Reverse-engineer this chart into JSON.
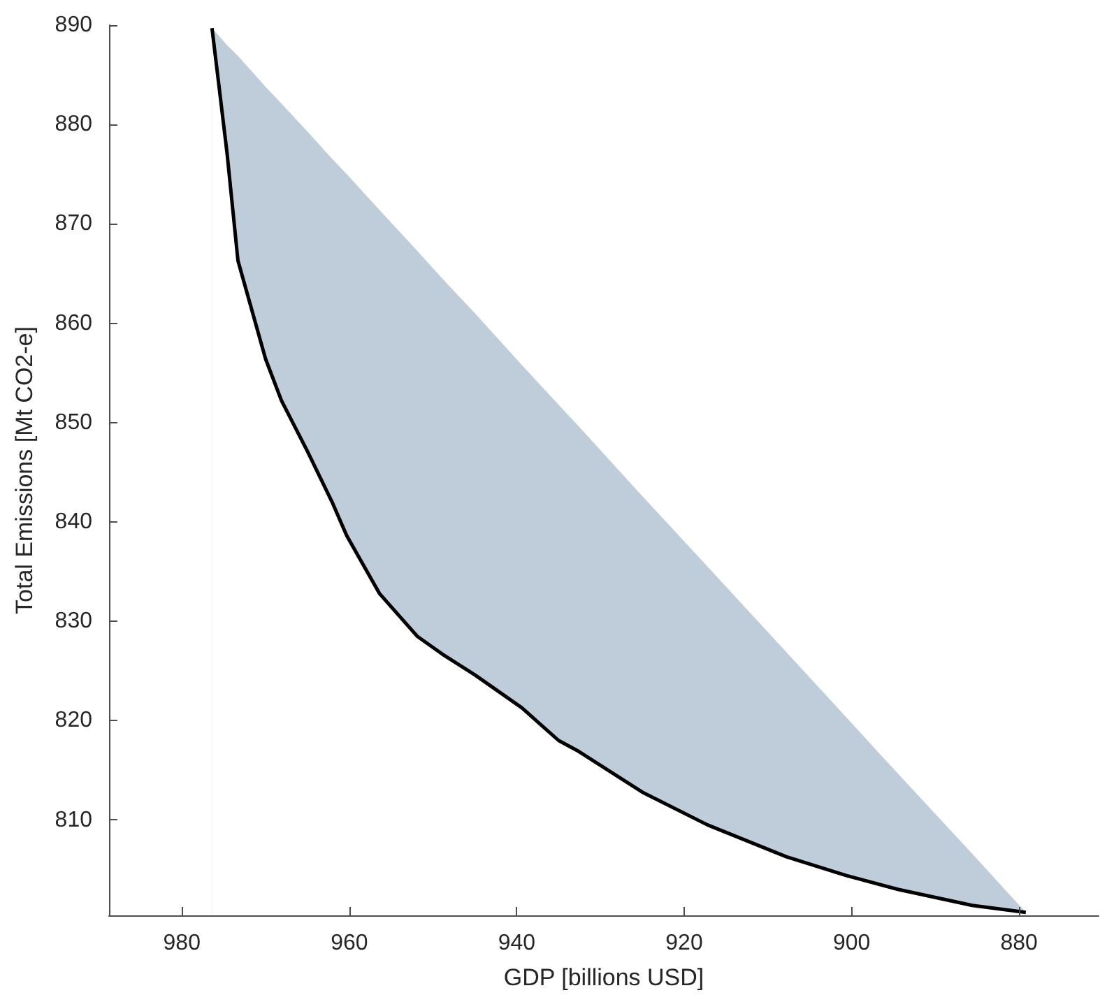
{
  "chart_data": {
    "type": "line",
    "xlabel": "GDP [billions USD]",
    "ylabel": "Total Emissions [Mt CO2-e]",
    "xlim": [
      988.7,
      870.5
    ],
    "ylim": [
      800.4,
      890
    ],
    "xticks": [
      980,
      960,
      940,
      920,
      900,
      880
    ],
    "yticks": [
      810,
      820,
      830,
      840,
      850,
      860,
      870,
      880,
      890
    ],
    "grid": false,
    "marker": "none",
    "line_style": "solid",
    "series": [
      {
        "type": "area",
        "color": "#bfcddb",
        "x": [
          976.4,
          974.6,
          973.3,
          970,
          968.1,
          965,
          962,
          960.3,
          956.4,
          951.9,
          948.9,
          945,
          939.4,
          935,
          932.8,
          925,
          917.2,
          907.8,
          900.6,
          894.4,
          885.6,
          879.2
        ],
        "values": [
          889.7,
          888.0,
          886.9,
          883.8,
          882.1,
          879.3,
          876.5,
          875.0,
          871.4,
          867.3,
          864.5,
          861.0,
          855.8,
          851.8,
          849.8,
          842.6,
          835.5,
          826.9,
          820.3,
          814.6,
          806.6,
          800.7
        ]
      },
      {
        "color": "#000000",
        "x": [
          976.4,
          974.6,
          973.3,
          970,
          968.1,
          965,
          962,
          960.3,
          956.4,
          951.9,
          948.9,
          945,
          939.4,
          935,
          932.8,
          925,
          917.2,
          907.8,
          900.6,
          894.4,
          885.6,
          879.2
        ],
        "values": [
          889.7,
          877.1,
          866.3,
          856.4,
          852.2,
          847.1,
          841.9,
          838.6,
          832.8,
          828.5,
          826.7,
          824.6,
          821.3,
          818.0,
          817.0,
          812.8,
          809.5,
          806.3,
          804.4,
          803.0,
          801.4,
          800.7
        ]
      }
    ]
  }
}
